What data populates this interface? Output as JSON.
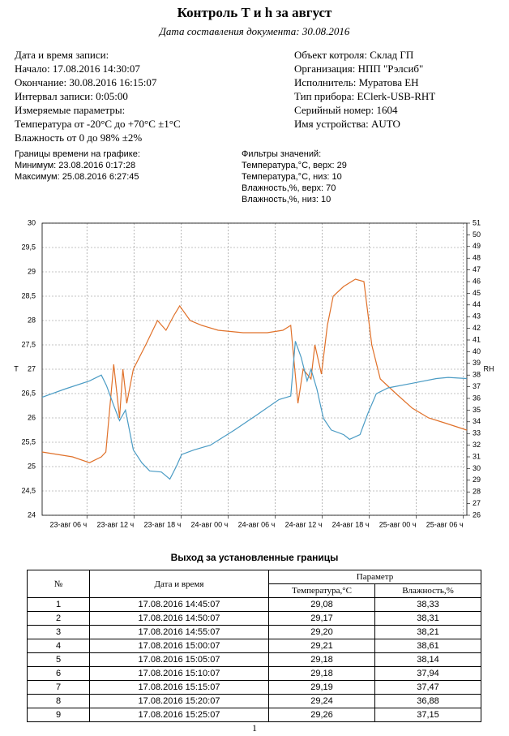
{
  "header": {
    "title": "Контроль T и h за август",
    "subtitle": "Дата составления документа: 30.08.2016"
  },
  "info_left": [
    "Дата и время записи:",
    "Начало: 17.08.2016 14:30:07",
    "Окончание: 30.08.2016 16:15:07",
    "Интервал записи: 0:05:00",
    "Измеряемые параметры:",
    "Температура от -20°C до +70°C ±1°C",
    "Влажность от 0 до 98% ±2%"
  ],
  "info_right": [
    "Объект котроля: Склад ГП",
    "Организация: НПП \"Рэлсиб\"",
    "Исполнитель: Муратова ЕН",
    "Тип прибора: EClerk-USB-RHT",
    "Серийный номер: 1604",
    "Имя устройства: AUTO"
  ],
  "time_bounds": [
    "Границы времени на графике:",
    "Минимум: 23.08.2016 0:17:28",
    "Максимум: 25.08.2016 6:27:45"
  ],
  "filters": [
    "Фильтры значений:",
    "Температура,°С, верх: 29",
    "Температура,°С, низ: 10",
    "Влажность,%, верх: 70",
    "Влажность,%, низ: 10"
  ],
  "chart_data": {
    "type": "line",
    "y_label": "T",
    "y2_label": "RH",
    "grid": true,
    "xlim": [
      "2016-08-23T00:17:28",
      "2016-08-25T06:27:45"
    ],
    "xticks": [
      {
        "value": "2016-08-23T06:00",
        "label": "23-авг 06 ч"
      },
      {
        "value": "2016-08-23T12:00",
        "label": "23-авг 12 ч"
      },
      {
        "value": "2016-08-23T18:00",
        "label": "23-авг 18 ч"
      },
      {
        "value": "2016-08-24T00:00",
        "label": "24-авг 00 ч"
      },
      {
        "value": "2016-08-24T06:00",
        "label": "24-авг 06 ч"
      },
      {
        "value": "2016-08-24T12:00",
        "label": "24-авг 12 ч"
      },
      {
        "value": "2016-08-24T18:00",
        "label": "24-авг 18 ч"
      },
      {
        "value": "2016-08-25T00:00",
        "label": "25-авг 00 ч"
      },
      {
        "value": "2016-08-25T06:00",
        "label": "25-авг 06 ч"
      }
    ],
    "ylim": [
      24,
      30
    ],
    "yticks": [
      24,
      {
        "value": 24.5,
        "label": "24,5"
      },
      25,
      {
        "value": 25.5,
        "label": "25,5"
      },
      26,
      {
        "value": 26.5,
        "label": "26,5"
      },
      27,
      {
        "value": 27.5,
        "label": "27,5"
      },
      28,
      {
        "value": 28.5,
        "label": "28,5"
      },
      29,
      {
        "value": 29.5,
        "label": "29,5"
      },
      30
    ],
    "y2lim": [
      26,
      51
    ],
    "y2ticks": [
      26,
      27,
      28,
      29,
      30,
      31,
      32,
      33,
      34,
      35,
      36,
      37,
      38,
      39,
      40,
      41,
      42,
      43,
      44,
      45,
      46,
      47,
      48,
      49,
      50,
      51
    ],
    "series": [
      {
        "color": "#e0712a",
        "x": [
          "2016-08-23T00:17",
          "2016-08-23T04:10",
          "2016-08-23T06:20",
          "2016-08-23T07:50",
          "2016-08-23T08:25",
          "2016-08-23T09:25",
          "2016-08-23T10:10",
          "2016-08-23T10:35",
          "2016-08-23T11:05",
          "2016-08-23T11:55",
          "2016-08-23T13:30",
          "2016-08-23T15:00",
          "2016-08-23T16:05",
          "2016-08-23T17:05",
          "2016-08-23T17:50",
          "2016-08-23T19:10",
          "2016-08-23T20:40",
          "2016-08-23T22:45",
          "2016-08-24T01:55",
          "2016-08-24T05:00",
          "2016-08-24T07:00",
          "2016-08-24T08:00",
          "2016-08-24T08:55",
          "2016-08-24T09:35",
          "2016-08-24T10:35",
          "2016-08-24T11:05",
          "2016-08-24T11:55",
          "2016-08-24T12:40",
          "2016-08-24T13:25",
          "2016-08-24T14:45",
          "2016-08-24T16:15",
          "2016-08-24T17:20",
          "2016-08-24T18:20",
          "2016-08-24T19:25",
          "2016-08-24T21:25",
          "2016-08-24T23:30",
          "2016-08-25T01:35",
          "2016-08-25T03:35",
          "2016-08-25T06:27"
        ],
        "values": [
          25.3,
          25.2,
          25.08,
          25.2,
          25.3,
          27.1,
          26.0,
          27.0,
          26.3,
          27.0,
          27.5,
          28.0,
          27.8,
          28.1,
          28.3,
          28.0,
          27.9,
          27.8,
          27.75,
          27.75,
          27.8,
          27.9,
          26.3,
          27.0,
          26.8,
          27.5,
          26.9,
          27.9,
          28.5,
          28.7,
          28.85,
          28.8,
          27.5,
          26.8,
          26.5,
          26.2,
          26.0,
          25.9,
          25.75
        ]
      },
      {
        "color": "#4a9bc4",
        "axis": "y2",
        "x": [
          "2016-08-23T00:17",
          "2016-08-23T03:10",
          "2016-08-23T06:20",
          "2016-08-23T07:50",
          "2016-08-23T08:30",
          "2016-08-23T09:25",
          "2016-08-23T10:10",
          "2016-08-23T10:55",
          "2016-08-23T11:55",
          "2016-08-23T13:00",
          "2016-08-23T14:00",
          "2016-08-23T15:30",
          "2016-08-23T16:35",
          "2016-08-23T17:25",
          "2016-08-23T18:05",
          "2016-08-23T19:40",
          "2016-08-23T21:45",
          "2016-08-24T00:50",
          "2016-08-24T03:55",
          "2016-08-24T06:30",
          "2016-08-24T08:00",
          "2016-08-24T08:35",
          "2016-08-24T09:20",
          "2016-08-24T10:05",
          "2016-08-24T10:35",
          "2016-08-24T11:20",
          "2016-08-24T12:10",
          "2016-08-24T13:10",
          "2016-08-24T14:45",
          "2016-08-24T15:30",
          "2016-08-24T16:50",
          "2016-08-24T17:50",
          "2016-08-24T18:55",
          "2016-08-24T20:25",
          "2016-08-24T23:30",
          "2016-08-25T02:35",
          "2016-08-25T04:05",
          "2016-08-25T06:27"
        ],
        "values": [
          36.1,
          36.8,
          37.5,
          38.0,
          37.1,
          35.4,
          34.1,
          35.0,
          31.6,
          30.5,
          29.8,
          29.7,
          29.1,
          30.2,
          31.2,
          31.6,
          32.0,
          33.3,
          34.7,
          35.9,
          36.2,
          40.9,
          39.5,
          37.5,
          38.5,
          36.8,
          34.3,
          33.3,
          32.9,
          32.5,
          32.9,
          34.7,
          36.4,
          36.9,
          37.3,
          37.7,
          37.8,
          37.7
        ]
      }
    ]
  },
  "table": {
    "title": "Выход за установленные границы",
    "header": [
      "№",
      "Дата и время",
      "Параметр",
      "Температура,°C",
      "Влажность,%"
    ],
    "rows": [
      [
        "1",
        "17.08.2016 14:45:07",
        "29,08",
        "38,33"
      ],
      [
        "2",
        "17.08.2016 14:50:07",
        "29,17",
        "38,31"
      ],
      [
        "3",
        "17.08.2016 14:55:07",
        "29,20",
        "38,21"
      ],
      [
        "4",
        "17.08.2016 15:00:07",
        "29,21",
        "38,61"
      ],
      [
        "5",
        "17.08.2016 15:05:07",
        "29,18",
        "38,14"
      ],
      [
        "6",
        "17.08.2016 15:10:07",
        "29,18",
        "37,94"
      ],
      [
        "7",
        "17.08.2016 15:15:07",
        "29,19",
        "37,47"
      ],
      [
        "8",
        "17.08.2016 15:20:07",
        "29,24",
        "36,88"
      ],
      [
        "9",
        "17.08.2016 15:25:07",
        "29,26",
        "37,15"
      ]
    ]
  },
  "page_number": "1"
}
